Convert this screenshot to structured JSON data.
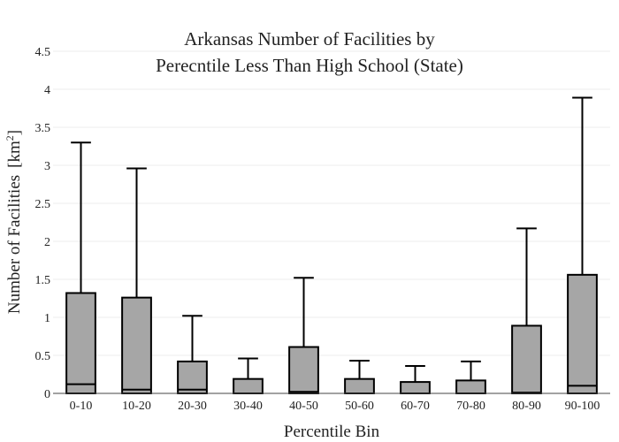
{
  "chart_data": {
    "type": "box",
    "title_line1": "Arkansas Number of Facilities by",
    "title_line2": "Perecntile Less Than High School (State)",
    "xlabel": "Percentile Bin",
    "ylabel": "Number of Facilities",
    "ylabel_unit": "[km",
    "ylabel_unit_sup": "2",
    "ylabel_unit_close": "]",
    "ylim": [
      0,
      4.5
    ],
    "yticks": [
      0,
      0.5,
      1,
      1.5,
      2,
      2.5,
      3,
      3.5,
      4,
      4.5
    ],
    "ytick_labels": [
      "0",
      "0.5",
      "1",
      "1.5",
      "2",
      "2.5",
      "3",
      "3.5",
      "4",
      "4.5"
    ],
    "grid": true,
    "box_color": "#a6a6a6",
    "line_color": "#000000",
    "categories": [
      "0-10",
      "10-20",
      "20-30",
      "30-40",
      "40-50",
      "50-60",
      "60-70",
      "70-80",
      "80-90",
      "90-100"
    ],
    "boxes": [
      {
        "min": 0,
        "q1": 0,
        "median": 0.12,
        "q3": 1.32,
        "max": 3.3
      },
      {
        "min": 0,
        "q1": 0,
        "median": 0.05,
        "q3": 1.26,
        "max": 2.96
      },
      {
        "min": 0,
        "q1": 0,
        "median": 0.05,
        "q3": 0.42,
        "max": 1.02
      },
      {
        "min": 0,
        "q1": 0,
        "median": 0.0,
        "q3": 0.19,
        "max": 0.46
      },
      {
        "min": 0,
        "q1": 0,
        "median": 0.02,
        "q3": 0.61,
        "max": 1.52
      },
      {
        "min": 0,
        "q1": 0,
        "median": 0.0,
        "q3": 0.19,
        "max": 0.43
      },
      {
        "min": 0,
        "q1": 0,
        "median": 0.0,
        "q3": 0.15,
        "max": 0.36
      },
      {
        "min": 0,
        "q1": 0,
        "median": 0.0,
        "q3": 0.17,
        "max": 0.42
      },
      {
        "min": 0,
        "q1": 0,
        "median": 0.01,
        "q3": 0.89,
        "max": 2.17
      },
      {
        "min": 0,
        "q1": 0,
        "median": 0.1,
        "q3": 1.56,
        "max": 3.89
      }
    ]
  }
}
